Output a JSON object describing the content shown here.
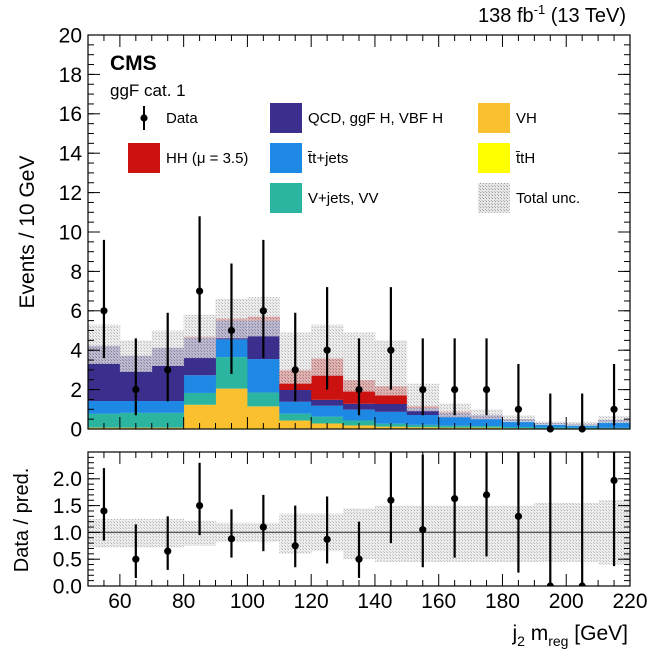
{
  "header": {
    "lumi": "138 fb",
    "lumi_sup": "-1",
    "energy": " (13 TeV)"
  },
  "labels": {
    "experiment": "CMS",
    "category": "ggF cat. 1"
  },
  "legend": [
    {
      "key": "data",
      "label": "Data"
    },
    {
      "key": "qcd",
      "label": "QCD, ggF H, VBF H"
    },
    {
      "key": "vh",
      "label": "VH"
    },
    {
      "key": "hh",
      "label": "HH (μ = 3.5)"
    },
    {
      "key": "ttjets",
      "label": "t̄t+jets"
    },
    {
      "key": "tth",
      "label": "t̄tH"
    },
    {
      "key": "vjets",
      "label": "V+jets, VV"
    },
    {
      "key": "unc",
      "label": "Total unc."
    }
  ],
  "colors": {
    "qcd": "#3a2f8c",
    "vh": "#fbc02d",
    "hh": "#cc1111",
    "ttjets": "#1e88e5",
    "tth": "#ffff00",
    "vjets": "#2bb5a0",
    "unc": "#bdbdbd"
  },
  "chart_data": {
    "type": "bar",
    "bin_edges": [
      50,
      60,
      70,
      80,
      90,
      100,
      110,
      120,
      130,
      140,
      150,
      160,
      170,
      180,
      190,
      200,
      210,
      220
    ],
    "x": [
      55,
      65,
      75,
      85,
      95,
      105,
      115,
      125,
      135,
      145,
      155,
      165,
      175,
      185,
      195,
      205,
      215
    ],
    "xlabel": "j",
    "xlabel_sub": "2",
    "xlabel_rest": " m",
    "xlabel_sub2": "reg",
    "xlabel_unit": " [GeV]",
    "ylabel_top": "Events / 10 GeV",
    "ylabel_bottom": "Data / pred.",
    "xlim": [
      50,
      220
    ],
    "ylim_top": [
      0,
      20
    ],
    "ylim_bottom": [
      0,
      2.5
    ],
    "xticks": [
      "60",
      "80",
      "100",
      "120",
      "140",
      "160",
      "180",
      "200",
      "220"
    ],
    "yticks_top": [
      "0",
      "2",
      "4",
      "6",
      "8",
      "10",
      "12",
      "14",
      "16",
      "18",
      "20"
    ],
    "yticks_bottom": [
      "0.0",
      "0.5",
      "1.0",
      "1.5",
      "2.0"
    ],
    "stack": [
      {
        "key": "tth",
        "values": [
          0.02,
          0.02,
          0.02,
          0.03,
          0.05,
          0.05,
          0.03,
          0.03,
          0.03,
          0.02,
          0.02,
          0.02,
          0.02,
          0.01,
          0.01,
          0.01,
          0.01
        ]
      },
      {
        "key": "vh",
        "values": [
          0.05,
          0.05,
          0.05,
          1.2,
          2.0,
          1.1,
          0.4,
          0.25,
          0.15,
          0.1,
          0.07,
          0.05,
          0.05,
          0.03,
          0.02,
          0.02,
          0.02
        ]
      },
      {
        "key": "vjets",
        "values": [
          0.7,
          0.75,
          0.75,
          0.6,
          1.6,
          0.7,
          0.35,
          0.35,
          0.25,
          0.15,
          0.12,
          0.1,
          0.08,
          0.06,
          0.05,
          0.04,
          0.03
        ]
      },
      {
        "key": "ttjets",
        "values": [
          0.65,
          0.6,
          0.6,
          0.9,
          0.9,
          1.7,
          0.6,
          0.55,
          0.55,
          0.6,
          0.5,
          0.43,
          0.35,
          0.3,
          0.16,
          0.14,
          0.3
        ]
      },
      {
        "key": "qcd",
        "values": [
          2.8,
          2.3,
          2.7,
          1.9,
          0.95,
          1.95,
          0.6,
          0.3,
          0.3,
          0.4,
          0.35,
          0.22,
          0.2,
          0.1,
          0.06,
          0.05,
          0.1
        ]
      },
      {
        "key": "hh",
        "values": [
          0.0,
          0.0,
          0.0,
          0.05,
          0.1,
          0.2,
          1.0,
          2.1,
          1.2,
          0.9,
          0.1,
          0.05,
          0.0,
          0.0,
          0.0,
          0.0,
          0.0
        ]
      }
    ],
    "unc_band": {
      "low": [
        3.3,
        2.9,
        3.2,
        3.6,
        4.6,
        4.7,
        2.3,
        2.7,
        1.9,
        1.7,
        0.9,
        0.6,
        0.5,
        0.35,
        0.2,
        0.15,
        0.3
      ],
      "high": [
        5.3,
        4.5,
        5.0,
        5.8,
        6.6,
        6.7,
        4.9,
        5.3,
        4.9,
        4.5,
        2.3,
        1.3,
        1.0,
        0.7,
        0.4,
        0.35,
        0.65
      ]
    },
    "data": {
      "values": [
        6,
        2,
        3,
        7,
        5,
        6,
        3,
        4,
        2,
        4,
        2,
        2,
        2,
        1,
        0,
        0,
        1
      ],
      "err_low": [
        2.4,
        1.3,
        1.6,
        2.6,
        2.2,
        2.4,
        1.6,
        2.0,
        1.3,
        2.0,
        1.3,
        1.3,
        1.3,
        0.8,
        0.0,
        0.0,
        0.8
      ],
      "err_high": [
        3.6,
        2.6,
        2.9,
        3.8,
        3.4,
        3.6,
        2.9,
        3.2,
        2.6,
        3.2,
        2.6,
        2.6,
        2.6,
        2.3,
        1.8,
        1.8,
        2.3
      ]
    },
    "ratio": {
      "values": [
        1.4,
        0.5,
        0.65,
        1.5,
        0.88,
        1.1,
        0.75,
        0.87,
        0.5,
        1.6,
        1.05,
        1.63,
        1.7,
        1.3,
        0.0,
        0.0,
        1.97
      ],
      "err_low": [
        0.55,
        0.35,
        0.35,
        0.55,
        0.35,
        0.45,
        0.4,
        0.45,
        0.35,
        0.8,
        0.7,
        1.1,
        1.15,
        1.05,
        0.0,
        0.0,
        1.6
      ],
      "err_high": [
        0.8,
        0.65,
        0.65,
        0.8,
        0.55,
        0.6,
        0.75,
        0.8,
        0.7,
        1.3,
        1.4,
        2.0,
        2.1,
        2.3,
        2.5,
        2.5,
        2.5
      ],
      "band_low": [
        0.72,
        0.72,
        0.72,
        0.75,
        0.82,
        0.82,
        0.6,
        0.65,
        0.5,
        0.45,
        0.45,
        0.45,
        0.45,
        0.45,
        0.45,
        0.45,
        0.4
      ],
      "band_high": [
        1.25,
        1.25,
        1.25,
        1.22,
        1.18,
        1.18,
        1.35,
        1.35,
        1.45,
        1.5,
        1.5,
        1.5,
        1.5,
        1.5,
        1.55,
        1.55,
        1.6
      ],
      "reference": 1.0
    }
  }
}
